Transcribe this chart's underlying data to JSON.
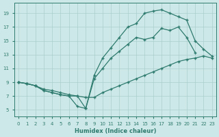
{
  "xlabel": "Humidex (Indice chaleur)",
  "background_color": "#cde8e8",
  "grid_color": "#aacece",
  "line_color": "#2e7b6e",
  "xlim": [
    -0.5,
    23.5
  ],
  "ylim": [
    4.0,
    20.5
  ],
  "xticks": [
    0,
    1,
    2,
    3,
    4,
    5,
    6,
    7,
    8,
    9,
    10,
    11,
    12,
    13,
    14,
    15,
    16,
    17,
    18,
    19,
    20,
    21,
    22,
    23
  ],
  "yticks": [
    5,
    7,
    9,
    11,
    13,
    15,
    17,
    19
  ],
  "series1_x": [
    0,
    1,
    2,
    3,
    4,
    5,
    6,
    7,
    8,
    9,
    10,
    11,
    12,
    13,
    14,
    15,
    16,
    17,
    18,
    19,
    20,
    21,
    22,
    23
  ],
  "series1_y": [
    9.0,
    8.8,
    8.5,
    8.0,
    7.8,
    7.5,
    7.2,
    7.0,
    6.8,
    6.8,
    7.5,
    8.0,
    8.5,
    9.0,
    9.5,
    10.0,
    10.5,
    11.0,
    11.5,
    12.0,
    12.3,
    12.5,
    12.8,
    12.5
  ],
  "series2_x": [
    0,
    1,
    2,
    3,
    4,
    5,
    6,
    7,
    8,
    9,
    10,
    11,
    12,
    13,
    14,
    15,
    16,
    17,
    18,
    19,
    20,
    21
  ],
  "series2_y": [
    9.0,
    8.8,
    8.5,
    7.8,
    7.5,
    7.2,
    7.0,
    7.0,
    5.2,
    9.5,
    11.0,
    12.5,
    13.5,
    14.5,
    15.5,
    15.2,
    15.5,
    16.8,
    16.5,
    17.0,
    15.5,
    13.3
  ],
  "series3_x": [
    0,
    1,
    2,
    3,
    4,
    5,
    6,
    7,
    8,
    9,
    10,
    11,
    12,
    13,
    14,
    15,
    16,
    17,
    18,
    19,
    20,
    21,
    22,
    23
  ],
  "series3_y": [
    9.0,
    8.8,
    8.5,
    7.8,
    7.5,
    7.2,
    7.0,
    5.5,
    5.2,
    10.0,
    12.5,
    14.0,
    15.5,
    17.0,
    17.5,
    19.0,
    19.3,
    19.5,
    19.0,
    18.5,
    18.0,
    15.0,
    13.8,
    12.8
  ]
}
